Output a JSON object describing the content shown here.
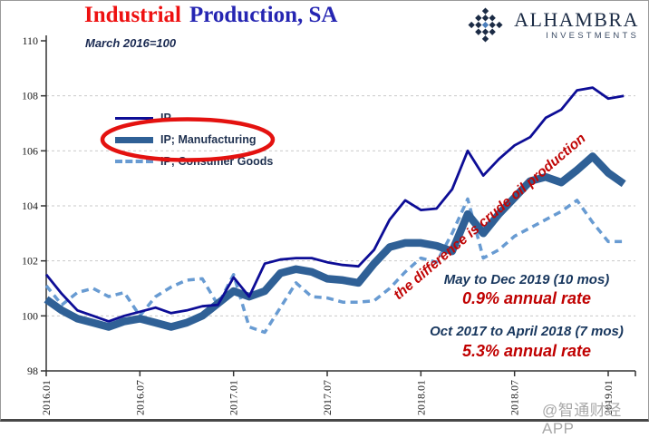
{
  "header": {
    "title_red": "Industrial",
    "title_rest": "Production, SA",
    "subtitle": "March 2016=100"
  },
  "logo": {
    "name": "ALHAMBRA",
    "tagline": "INVESTMENTS"
  },
  "watermark": "@智通财经APP",
  "annotations": {
    "diagonal_note": "the difference is crude oil production",
    "note1_line1": "May to Dec 2019 (10 mos)",
    "note1_line2": "0.9% annual rate",
    "note2_line1": "Oct 2017 to April 2018 (7 mos)",
    "note2_line2": "5.3% annual rate"
  },
  "colors": {
    "title_red": "#ee1010",
    "title_blue": "#2525b2",
    "annotation_red": "#c00000",
    "annotation_navy": "#17365d",
    "highlight_ellipse_red": "#e41210",
    "gridline": "#c9c9c9",
    "axis": "#333333",
    "logo_navy": "#1b2b45",
    "logo_center_blue": "#4a7ebb",
    "watermark_gray": "#a8a8a8"
  },
  "chart_data": {
    "type": "line",
    "title": "Industrial Production, SA",
    "subtitle": "March 2016=100",
    "ylim": [
      98,
      110
    ],
    "y_ticks": [
      98,
      100,
      102,
      104,
      106,
      108,
      110
    ],
    "grid": "horizontal-dashed",
    "legend_position": "inside-top-left",
    "x_tick_labels": [
      "2016.01",
      "2016.07",
      "2017.01",
      "2017.07",
      "2018.01",
      "2018.07",
      "2019.01"
    ],
    "x_tick_indices": [
      0,
      6,
      12,
      18,
      24,
      30,
      36
    ],
    "months": [
      "2016.01",
      "2016.02",
      "2016.03",
      "2016.04",
      "2016.05",
      "2016.06",
      "2016.07",
      "2016.08",
      "2016.09",
      "2016.10",
      "2016.11",
      "2016.12",
      "2017.01",
      "2017.02",
      "2017.03",
      "2017.04",
      "2017.05",
      "2017.06",
      "2017.07",
      "2017.08",
      "2017.09",
      "2017.10",
      "2017.11",
      "2017.12",
      "2018.01",
      "2018.02",
      "2018.03",
      "2018.04",
      "2018.05",
      "2018.06",
      "2018.07",
      "2018.08",
      "2018.09",
      "2018.10",
      "2018.11",
      "2018.12",
      "2019.01",
      "2019.02"
    ],
    "series": [
      {
        "name": "IP",
        "style": "solid-thin",
        "color": "#0d0d96",
        "values": [
          101.5,
          100.8,
          100.2,
          100.0,
          99.8,
          100.0,
          100.15,
          100.3,
          100.1,
          100.2,
          100.35,
          100.4,
          101.4,
          100.7,
          101.9,
          102.05,
          102.1,
          102.1,
          101.95,
          101.85,
          101.8,
          102.4,
          103.5,
          104.2,
          103.85,
          103.9,
          104.6,
          106.0,
          105.1,
          105.7,
          106.2,
          106.5,
          107.2,
          107.5,
          108.2,
          108.3,
          107.9,
          108.0
        ]
      },
      {
        "name": "IP; Manufacturing",
        "style": "solid-thick",
        "color": "#2f6096",
        "highlighted_with_red_ellipse": true,
        "values": [
          100.6,
          100.2,
          99.9,
          99.75,
          99.6,
          99.8,
          99.9,
          99.75,
          99.6,
          99.75,
          100.0,
          100.45,
          100.9,
          100.7,
          100.9,
          101.55,
          101.7,
          101.6,
          101.35,
          101.3,
          101.2,
          101.9,
          102.5,
          102.65,
          102.65,
          102.55,
          102.35,
          103.7,
          103.0,
          103.7,
          104.3,
          104.9,
          105.05,
          104.85,
          105.3,
          105.8,
          105.2,
          104.8
        ]
      },
      {
        "name": "IP; Consumer Goods",
        "style": "dashed",
        "color": "#689bd2",
        "values": [
          101.1,
          100.4,
          100.85,
          101.0,
          100.7,
          100.85,
          100.0,
          100.7,
          101.05,
          101.3,
          101.35,
          100.4,
          101.5,
          99.6,
          99.4,
          100.3,
          101.2,
          100.7,
          100.65,
          100.5,
          100.5,
          100.55,
          101.0,
          101.6,
          102.1,
          101.95,
          103.0,
          104.25,
          102.1,
          102.4,
          102.9,
          103.2,
          103.5,
          103.8,
          104.2,
          103.4,
          102.7,
          102.7
        ]
      }
    ]
  }
}
